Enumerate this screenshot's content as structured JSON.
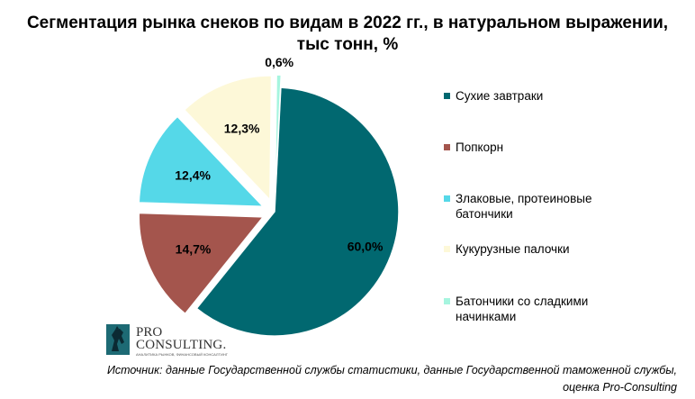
{
  "chart_data": {
    "type": "pie",
    "title_lines": [
      "Сегментация рынка снеков по видам в 2022 гг., в натуральном выражении,",
      "тыс тонн, %"
    ],
    "slices": [
      {
        "name": "Сухие завтраки",
        "value": 60.0,
        "label": "60,0%",
        "color": "#016870",
        "exploded": false
      },
      {
        "name": "Попкорн",
        "value": 14.7,
        "label": "14,7%",
        "color": "#A4554D",
        "exploded": true
      },
      {
        "name": "Злаковые, протеиновые батончики",
        "value": 12.4,
        "label": "12,4%",
        "color": "#55D8E8",
        "exploded": true
      },
      {
        "name": "Кукурузные палочки",
        "value": 12.3,
        "label": "12,3%",
        "color": "#FDF8D8",
        "exploded": true
      },
      {
        "name": "Батончики со сладкими начинками",
        "value": 0.6,
        "label": "0,6%",
        "color": "#A6F5DF",
        "exploded": true
      }
    ],
    "legend_position": "right",
    "legend": [
      {
        "label_lines": [
          "Сухие завтраки"
        ],
        "color": "#016870"
      },
      {
        "label_lines": [
          "Попкорн"
        ],
        "color": "#A4554D"
      },
      {
        "label_lines": [
          "Злаковые, протеиновые",
          "батончики"
        ],
        "color": "#55D8E8"
      },
      {
        "label_lines": [
          "Кукурузные палочки"
        ],
        "color": "#FDF8D8"
      },
      {
        "label_lines": [
          "Батончики со сладкими",
          "начинками"
        ],
        "color": "#A6F5DF"
      }
    ]
  },
  "logo": {
    "line1": "PRO",
    "line2": "CONSULTING.",
    "tagline": "АНАЛИТИКА РЫНКОВ, ФИНАНСОВЫЙ КОНСАЛТИНГ",
    "icon": "horse-logo-icon"
  },
  "source_lines": [
    "Источник: данные Государственной службы статистики, данные Государственной таможенной службы,",
    "оценка Pro-Consulting"
  ]
}
